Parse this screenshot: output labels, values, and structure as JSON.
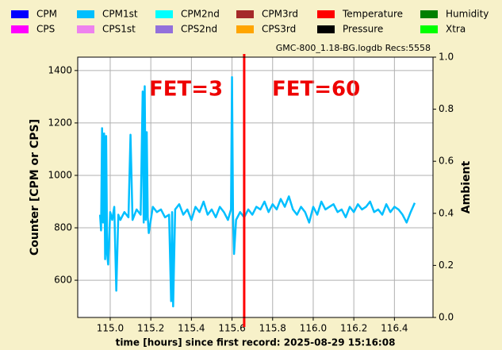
{
  "chart_data": {
    "type": "line",
    "legend": [
      {
        "name": "CPM",
        "color": "#0000ff"
      },
      {
        "name": "CPM1st",
        "color": "#00bfff"
      },
      {
        "name": "CPM2nd",
        "color": "#00ffff"
      },
      {
        "name": "CPM3rd",
        "color": "#a52a2a"
      },
      {
        "name": "Temperature",
        "color": "#ff0000"
      },
      {
        "name": "Humidity",
        "color": "#008000"
      },
      {
        "name": "CPS",
        "color": "#ff00ff"
      },
      {
        "name": "CPS1st",
        "color": "#ee82ee"
      },
      {
        "name": "CPS2nd",
        "color": "#9370db"
      },
      {
        "name": "CPS3rd",
        "color": "#ffa500"
      },
      {
        "name": "Pressure",
        "color": "#000000"
      },
      {
        "name": "Xtra",
        "color": "#00ff00"
      }
    ],
    "info": "GMC-800_1.18-BG.logdb   Recs:5558",
    "xlabel": "time [hours] since first record: 2025-08-29 15:16:08",
    "ylabel": "Counter  [CPM or CPS]",
    "y2label": "Ambient",
    "annotations": [
      "FET=3",
      "FET=60"
    ],
    "vline_x": 115.66,
    "vline_color": "#ff0000",
    "grid": true,
    "xlim": [
      114.84,
      116.59
    ],
    "xticks": [
      {
        "value": 115,
        "label": "115.0"
      },
      115.2,
      115.4,
      115.6,
      115.8,
      {
        "value": 116,
        "label": "116.0"
      },
      116.2,
      116.4
    ],
    "ylim": [
      458,
      1451
    ],
    "yticks": [
      600,
      800,
      1000,
      1200,
      1400
    ],
    "y2lim": [
      0,
      1
    ],
    "y2ticks": [
      {
        "value": 0,
        "label": "0.0"
      },
      0.2,
      0.4,
      0.6,
      0.8,
      {
        "value": 1,
        "label": "1.0"
      }
    ],
    "x": [
      114.95,
      114.955,
      114.96,
      114.965,
      114.97,
      114.975,
      114.98,
      114.985,
      114.99,
      115.0,
      115.01,
      115.02,
      115.03,
      115.04,
      115.05,
      115.07,
      115.09,
      115.1,
      115.11,
      115.13,
      115.15,
      115.16,
      115.165,
      115.17,
      115.175,
      115.18,
      115.185,
      115.19,
      115.21,
      115.23,
      115.25,
      115.27,
      115.29,
      115.3,
      115.305,
      115.31,
      115.32,
      115.34,
      115.36,
      115.38,
      115.4,
      115.42,
      115.44,
      115.46,
      115.48,
      115.5,
      115.52,
      115.54,
      115.56,
      115.58,
      115.595,
      115.6,
      115.605,
      115.61,
      115.62,
      115.64,
      115.66,
      115.68,
      115.7,
      115.72,
      115.74,
      115.76,
      115.78,
      115.8,
      115.82,
      115.84,
      115.86,
      115.88,
      115.9,
      115.92,
      115.94,
      115.96,
      115.98,
      116.0,
      116.02,
      116.04,
      116.06,
      116.08,
      116.1,
      116.12,
      116.14,
      116.16,
      116.18,
      116.2,
      116.22,
      116.24,
      116.26,
      116.28,
      116.3,
      116.32,
      116.34,
      116.36,
      116.38,
      116.4,
      116.42,
      116.44,
      116.46,
      116.48,
      116.5
    ],
    "series": [
      {
        "name": "CPM1st",
        "color": "#00bfff",
        "values": [
          850,
          790,
          1180,
          820,
          1160,
          680,
          1150,
          700,
          660,
          860,
          830,
          880,
          560,
          850,
          830,
          860,
          840,
          1155,
          830,
          870,
          850,
          1320,
          820,
          1340,
          830,
          1165,
          840,
          780,
          880,
          860,
          870,
          840,
          850,
          520,
          860,
          500,
          870,
          890,
          850,
          870,
          830,
          880,
          860,
          900,
          850,
          870,
          840,
          880,
          860,
          830,
          870,
          1375,
          850,
          700,
          830,
          860,
          840,
          870,
          850,
          880,
          870,
          900,
          860,
          890,
          870,
          910,
          880,
          920,
          870,
          850,
          880,
          860,
          820,
          880,
          850,
          900,
          870,
          880,
          890,
          860,
          870,
          840,
          880,
          860,
          890,
          870,
          880,
          900,
          860,
          870,
          850,
          890,
          860,
          880,
          870,
          850,
          820,
          860,
          895
        ]
      }
    ]
  }
}
